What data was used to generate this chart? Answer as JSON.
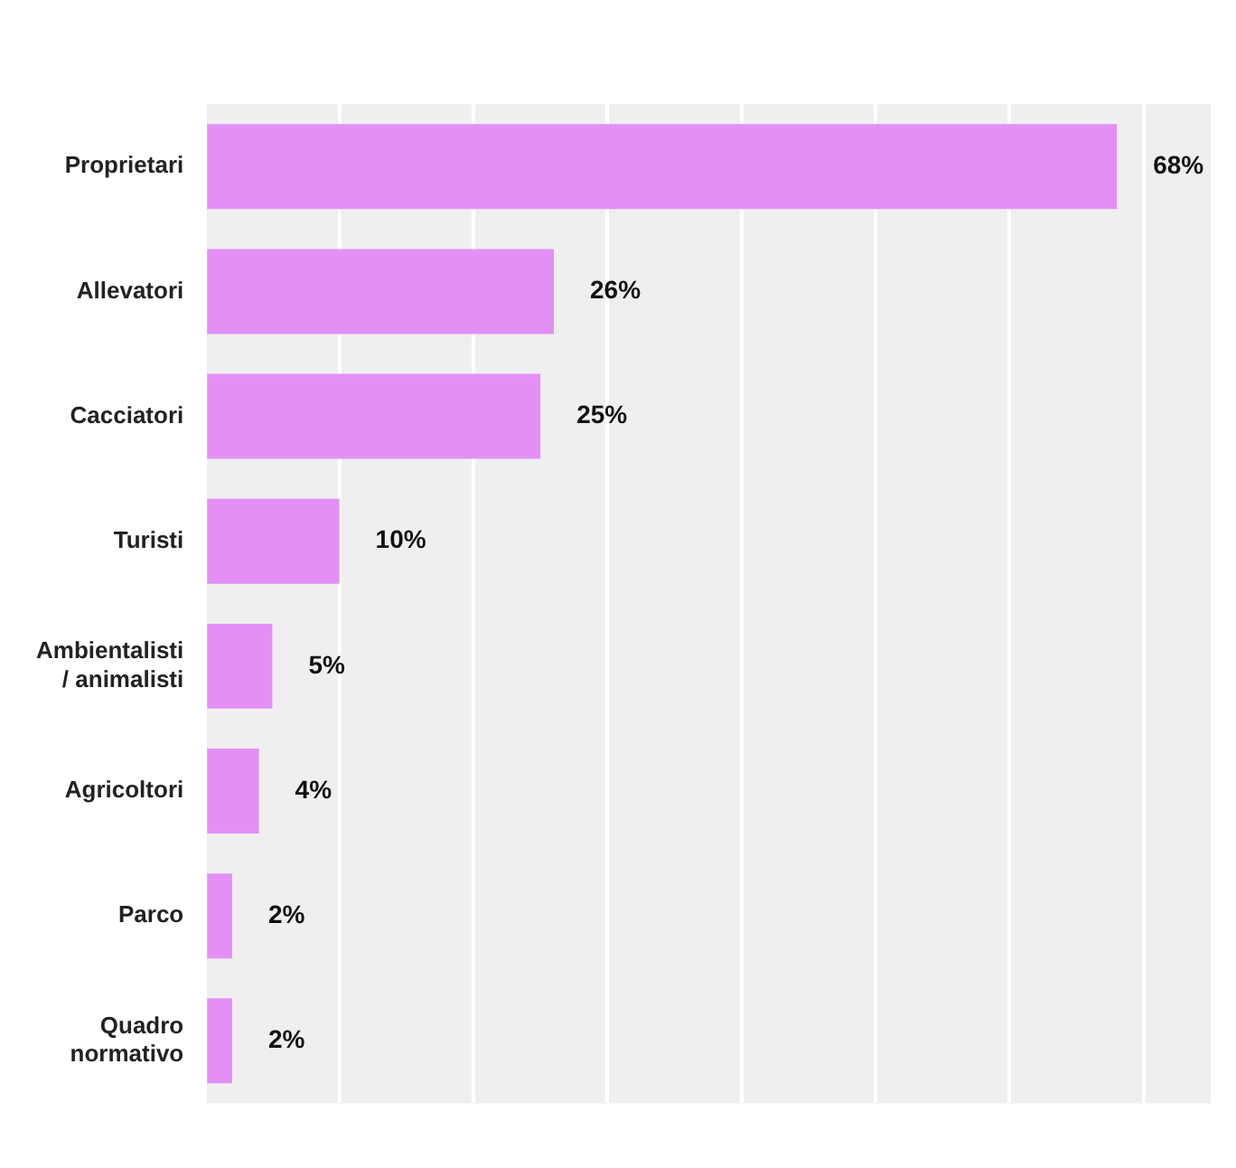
{
  "chart_data": {
    "type": "bar",
    "orientation": "horizontal",
    "categories": [
      "Proprietari",
      "Allevatori",
      "Cacciatori",
      "Turisti",
      "Ambientalisti / animalisti",
      "Agricoltori",
      "Parco",
      "Quadro normativo"
    ],
    "values": [
      68,
      26,
      25,
      10,
      5,
      4,
      2,
      2
    ],
    "value_labels": [
      "68%",
      "26%",
      "25%",
      "10%",
      "5%",
      "4%",
      "2%",
      "2%"
    ],
    "color": "#e48ff6",
    "xlim": [
      0,
      75
    ],
    "xticks": [
      {
        "value": 0,
        "label": null
      },
      {
        "value": 10,
        "label": null
      },
      {
        "value": 20,
        "label": null
      },
      {
        "value": 30,
        "label": null
      },
      {
        "value": 40,
        "label": null
      },
      {
        "value": 50,
        "label": null
      },
      {
        "value": 60,
        "label": null
      },
      {
        "value": 70,
        "label": null
      }
    ],
    "grid": "x",
    "legend": false,
    "tick_labels": "y"
  }
}
